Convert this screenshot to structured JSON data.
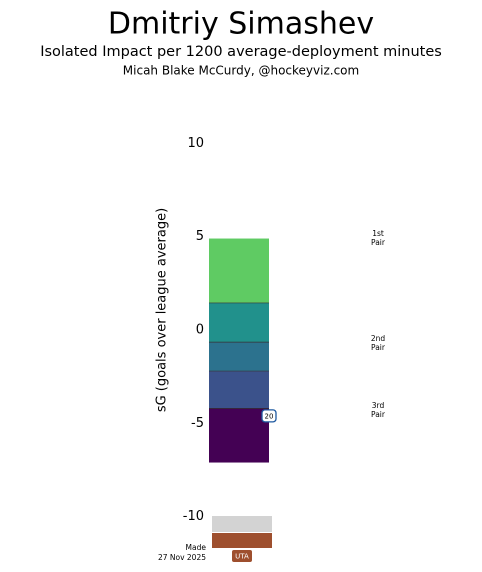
{
  "chart_data": {
    "type": "band",
    "title": "Dmitriy Simashev",
    "subtitle": "Isolated Impact per 1200 average-deployment minutes",
    "author": "Micah Blake McCurdy, @hockeyviz.com",
    "y_label": "sG (goals over league average)",
    "ylim": [
      -12,
      12
    ],
    "yticks": [
      10,
      5,
      0,
      -5,
      -10
    ],
    "band_edges": [
      4.9,
      1.45,
      -0.65,
      -2.2,
      -4.2,
      -7.1
    ],
    "band_colors": [
      "#5fcb63",
      "#21918c",
      "#2c728e",
      "#3b528b",
      "#440154"
    ],
    "marker": {
      "value": -4.6,
      "label": "20"
    },
    "tier_labels": [
      "1st\nPair",
      "2nd\nPair",
      "3rd\nPair"
    ],
    "made_label": "Made",
    "made_date": "27 Nov 2025",
    "team": "UTA"
  }
}
